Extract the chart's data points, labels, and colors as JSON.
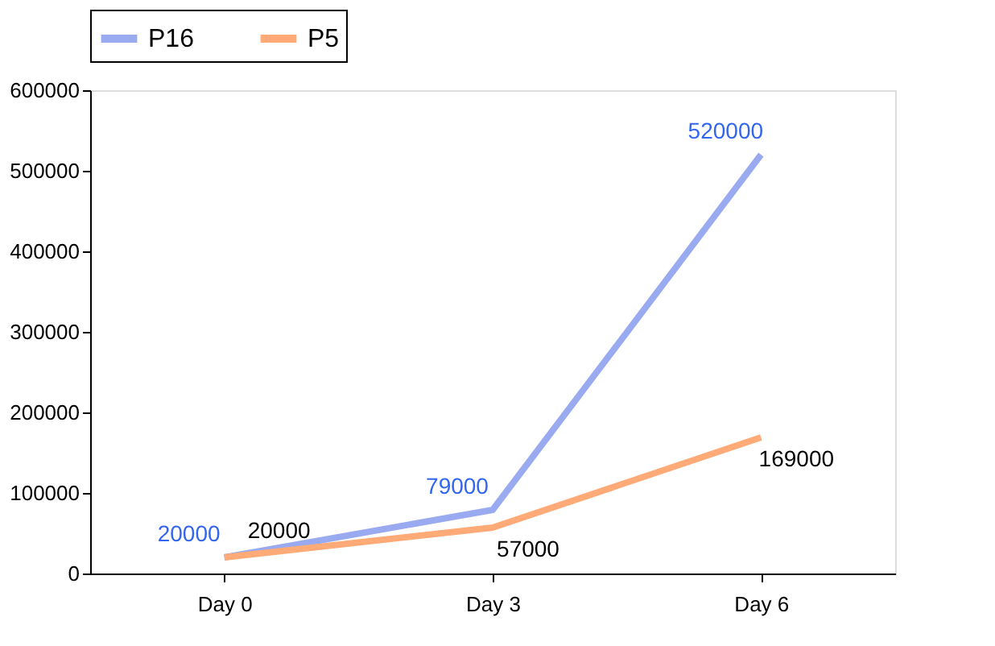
{
  "chart_data": {
    "type": "line",
    "categories": [
      "Day 0",
      "Day 3",
      "Day 6"
    ],
    "series": [
      {
        "name": "P16",
        "color": "#99aaf0",
        "values": [
          20000,
          79000,
          520000
        ]
      },
      {
        "name": "P5",
        "color": "#ffaa77",
        "values": [
          20000,
          57000,
          169000
        ]
      }
    ],
    "ylim": [
      0,
      600000
    ],
    "yticks": [
      0,
      100000,
      200000,
      300000,
      400000,
      500000,
      600000
    ],
    "data_labels": true,
    "legend": "top",
    "grid": false,
    "marker": "none",
    "line_style": "solid"
  }
}
